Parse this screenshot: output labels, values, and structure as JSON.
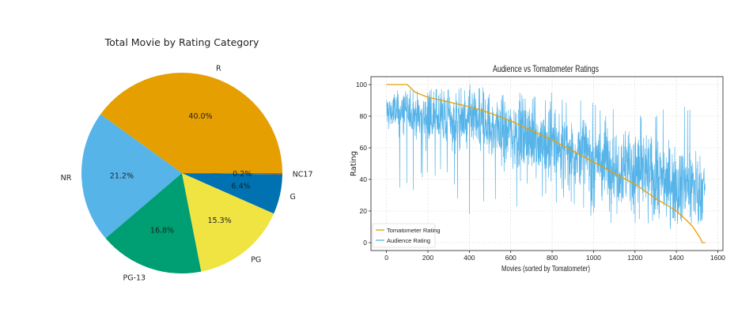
{
  "chart_data": [
    {
      "type": "pie",
      "title": "Total Movie by Rating Category",
      "slices": [
        {
          "label": "R",
          "value": 40.0,
          "pct_label": "40.0%",
          "color": "#E69F00"
        },
        {
          "label": "NR",
          "value": 21.2,
          "pct_label": "21.2%",
          "color": "#56B4E9"
        },
        {
          "label": "PG-13",
          "value": 16.8,
          "pct_label": "16.8%",
          "color": "#009E73"
        },
        {
          "label": "PG",
          "value": 15.3,
          "pct_label": "15.3%",
          "color": "#F0E442"
        },
        {
          "label": "G",
          "value": 6.4,
          "pct_label": "6.4%",
          "color": "#0072B2"
        },
        {
          "label": "NC17",
          "value": 0.2,
          "pct_label": "0.2%",
          "color": "#D55E00"
        }
      ]
    },
    {
      "type": "line",
      "title": "Audience vs Tomatometer Ratings",
      "xlabel": "Movies (sorted by Tomatometer)",
      "ylabel": "Rating",
      "xlim": [
        -75,
        1625
      ],
      "ylim": [
        -5,
        105
      ],
      "xticks": [
        0,
        200,
        400,
        600,
        800,
        1000,
        1200,
        1400,
        1600
      ],
      "yticks": [
        0,
        20,
        40,
        60,
        80,
        100
      ],
      "grid": true,
      "legend_position": "lower-left",
      "n_points": 1540,
      "series": [
        {
          "name": "Tomatometer Rating",
          "color": "#E69F00",
          "x": [
            0,
            100,
            140,
            200,
            300,
            400,
            500,
            600,
            700,
            800,
            900,
            1000,
            1100,
            1200,
            1300,
            1350,
            1400,
            1450,
            1480,
            1500,
            1515,
            1525,
            1540
          ],
          "values": [
            100,
            100,
            95,
            92,
            89,
            86,
            82,
            77,
            71,
            65,
            58,
            51,
            44,
            37,
            28,
            24,
            20,
            14,
            10,
            6,
            3,
            0,
            0
          ]
        },
        {
          "name": "Audience Rating",
          "color": "#56B4E9",
          "x": [
            0,
            100,
            200,
            300,
            400,
            500,
            600,
            700,
            800,
            900,
            1000,
            1100,
            1200,
            1300,
            1400,
            1500,
            1540
          ],
          "values": [
            83,
            82,
            80,
            78,
            76,
            73,
            70,
            66,
            62,
            58,
            54,
            50,
            46,
            42,
            38,
            35,
            33
          ],
          "spread": [
            9,
            9,
            10,
            12,
            13,
            14,
            15,
            16,
            16,
            17,
            17,
            17,
            17,
            16,
            15,
            14,
            14
          ],
          "min_values": [
            38,
            30,
            40,
            40,
            11,
            28,
            20,
            20,
            25,
            18,
            15,
            12,
            10,
            10,
            5,
            12,
            12
          ],
          "max_values": [
            95,
            97,
            97,
            97,
            100,
            98,
            95,
            95,
            95,
            95,
            88,
            86,
            87,
            83,
            91,
            88,
            65
          ]
        }
      ]
    }
  ]
}
